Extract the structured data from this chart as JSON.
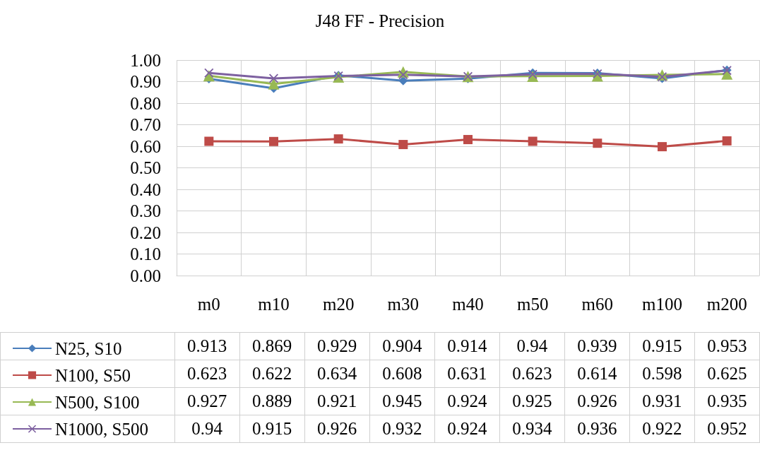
{
  "chart_data": {
    "type": "line",
    "title": "J48 FF - Precision",
    "categories": [
      "m0",
      "m10",
      "m20",
      "m30",
      "m40",
      "m50",
      "m60",
      "m100",
      "m200"
    ],
    "series": [
      {
        "name": "N25, S10",
        "color": "#4a7ebb",
        "marker": "diamond",
        "values": [
          0.913,
          0.869,
          0.929,
          0.904,
          0.914,
          0.94,
          0.939,
          0.915,
          0.953
        ]
      },
      {
        "name": "N100, S50",
        "color": "#be4b48",
        "marker": "square",
        "values": [
          0.623,
          0.622,
          0.634,
          0.608,
          0.631,
          0.623,
          0.614,
          0.598,
          0.625
        ]
      },
      {
        "name": "N500, S100",
        "color": "#98b954",
        "marker": "triangle",
        "values": [
          0.927,
          0.889,
          0.921,
          0.945,
          0.924,
          0.925,
          0.926,
          0.931,
          0.935
        ]
      },
      {
        "name": "N1000, S500",
        "color": "#7d60a0",
        "marker": "cross",
        "values": [
          0.94,
          0.915,
          0.926,
          0.932,
          0.924,
          0.934,
          0.936,
          0.922,
          0.952
        ]
      }
    ],
    "ylim": [
      0,
      1
    ],
    "yticks": [
      {
        "value": 0,
        "label": "0.00"
      },
      {
        "value": 0.1,
        "label": "0.10"
      },
      {
        "value": 0.2,
        "label": "0.20"
      },
      {
        "value": 0.3,
        "label": "0.30"
      },
      {
        "value": 0.4,
        "label": "0.40"
      },
      {
        "value": 0.5,
        "label": "0.50"
      },
      {
        "value": 0.6,
        "label": "0.60"
      },
      {
        "value": 0.7,
        "label": "0.70"
      },
      {
        "value": 0.8,
        "label": "0.80"
      },
      {
        "value": 0.9,
        "label": "0.90"
      },
      {
        "value": 1,
        "label": "1.00"
      }
    ],
    "grid": true,
    "legend": "bottom left",
    "data_labels": true,
    "line_style": "solid"
  }
}
